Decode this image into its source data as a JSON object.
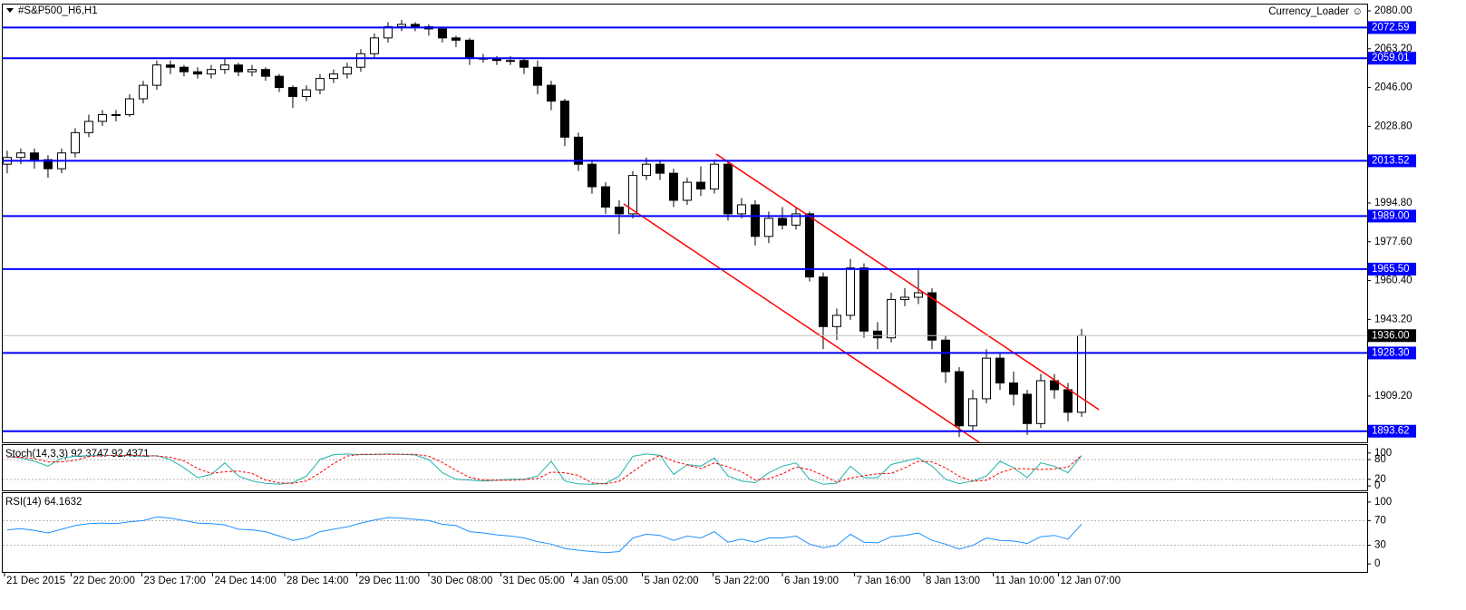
{
  "chart_data": [
    {
      "type": "candlestick",
      "title": "#S&P500_H6,H1",
      "annotation": "Currency_Loader ☺",
      "bull_color": "#ffffff",
      "bear_color": "#000000",
      "xlim": [
        -0.33,
        100
      ],
      "xticks": [
        {
          "value": -0.2,
          "label": "21 Dec 2015"
        },
        {
          "value": 4.7,
          "label": "22 Dec 20:00"
        },
        {
          "value": 9.9,
          "label": "23 Dec 17:00"
        },
        {
          "value": 15.1,
          "label": "24 Dec 14:00"
        },
        {
          "value": 20.4,
          "label": "28 Dec 14:00"
        },
        {
          "value": 25.7,
          "label": "29 Dec 11:00"
        },
        {
          "value": 31,
          "label": "30 Dec 08:00"
        },
        {
          "value": 36.3,
          "label": "31 Dec 05:00"
        },
        {
          "value": 41.5,
          "label": "4 Jan 05:00"
        },
        {
          "value": 46.7,
          "label": "5 Jan 02:00"
        },
        {
          "value": 51.9,
          "label": "5 Jan 22:00"
        },
        {
          "value": 57,
          "label": "6 Jan 19:00"
        },
        {
          "value": 62.3,
          "label": "7 Jan 16:00"
        },
        {
          "value": 67.4,
          "label": "8 Jan 13:00"
        },
        {
          "value": 72.5,
          "label": "11 Jan 10:00"
        },
        {
          "value": 77.3,
          "label": "12 Jan 07:00"
        }
      ],
      "ylim": [
        1888.68,
        2082.81
      ],
      "yticks": [
        {
          "value": 2080,
          "label": "2080.00"
        },
        {
          "value": 2063.2,
          "label": "2063.20"
        },
        {
          "value": 2046,
          "label": "2046.00"
        },
        {
          "value": 2028.8,
          "label": "2028.80"
        },
        {
          "value": 1994.8,
          "label": "1994.80"
        },
        {
          "value": 1977.6,
          "label": "1977.60"
        },
        {
          "value": 1960.4,
          "label": "1960.40"
        },
        {
          "value": 1943.2,
          "label": "1943.20"
        },
        {
          "value": 1909.2,
          "label": "1909.20"
        }
      ],
      "levels_color": "#0000ff",
      "levels": [
        2072.59,
        2059.01,
        2013.52,
        {
          "value": 1989,
          "label": "1989.00"
        },
        {
          "value": 1965.5,
          "label": "1965.50"
        },
        {
          "value": 1928.3,
          "label": "1928.30"
        },
        1893.62
      ],
      "price_line": {
        "value": 1936,
        "label": "1936.00"
      },
      "price_line_color": "#c0c0c0",
      "channel_color": "#ff0000",
      "channel": [
        {
          "x": [
            52.13,
            80.27
          ],
          "y": [
            2016.5,
            1903.2
          ]
        },
        {
          "x": [
            45.33,
            71.47
          ],
          "y": [
            1994.4,
            1888.7
          ]
        }
      ],
      "values": [
        [
          2012,
          2018,
          2008,
          2015
        ],
        [
          2015,
          2019,
          2012,
          2017
        ],
        [
          2017,
          2019,
          2010,
          2014
        ],
        [
          2014,
          2016,
          2006,
          2010
        ],
        [
          2010,
          2019,
          2008,
          2017
        ],
        [
          2017,
          2028,
          2015,
          2026
        ],
        [
          2026,
          2034,
          2024,
          2031
        ],
        [
          2031,
          2036,
          2029,
          2034
        ],
        [
          2034,
          2036,
          2031,
          2034
        ],
        [
          2034,
          2043,
          2033,
          2041
        ],
        [
          2041,
          2049,
          2039,
          2047
        ],
        [
          2047,
          2058,
          2045,
          2056
        ],
        [
          2056,
          2058,
          2052,
          2055
        ],
        [
          2055,
          2056,
          2051,
          2053
        ],
        [
          2053,
          2055,
          2050,
          2052
        ],
        [
          2052,
          2056,
          2050,
          2054
        ],
        [
          2054,
          2059,
          2052,
          2056
        ],
        [
          2056,
          2057,
          2051,
          2053
        ],
        [
          2053,
          2056,
          2051,
          2054
        ],
        [
          2054,
          2055,
          2049,
          2051
        ],
        [
          2051,
          2052,
          2044,
          2046
        ],
        [
          2046,
          2047,
          2037,
          2042
        ],
        [
          2042,
          2047,
          2040,
          2045
        ],
        [
          2045,
          2052,
          2043,
          2050
        ],
        [
          2050,
          2054,
          2048,
          2052
        ],
        [
          2052,
          2057,
          2050,
          2055
        ],
        [
          2055,
          2063,
          2053,
          2061
        ],
        [
          2061,
          2070,
          2059,
          2068
        ],
        [
          2068,
          2075,
          2066,
          2073
        ],
        [
          2073,
          2076,
          2071,
          2074
        ],
        [
          2074,
          2075,
          2071,
          2073
        ],
        [
          2073,
          2074,
          2069,
          2072
        ],
        [
          2072,
          2073,
          2066,
          2068
        ],
        [
          2068,
          2069,
          2064,
          2067
        ],
        [
          2067,
          2068,
          2056,
          2059
        ],
        [
          2059,
          2061,
          2057,
          2059
        ],
        [
          2059,
          2060,
          2056,
          2058
        ],
        [
          2058,
          2060,
          2056,
          2058
        ],
        [
          2058,
          2059,
          2052,
          2055
        ],
        [
          2055,
          2058,
          2043,
          2047
        ],
        [
          2047,
          2049,
          2036,
          2040
        ],
        [
          2040,
          2041,
          2020,
          2024
        ],
        [
          2024,
          2026,
          2009,
          2012
        ],
        [
          2012,
          2014,
          1999,
          2002
        ],
        [
          2002,
          2004,
          1990,
          1993
        ],
        [
          1993,
          1996,
          1981,
          1990
        ],
        [
          1990,
          2009,
          1988,
          2007
        ],
        [
          2007,
          2015,
          2005,
          2012
        ],
        [
          2012,
          2014,
          2005,
          2008
        ],
        [
          2008,
          2010,
          1993,
          1996
        ],
        [
          1996,
          2006,
          1994,
          2004
        ],
        [
          2004,
          2011,
          1998,
          2001
        ],
        [
          2001,
          2014,
          1999,
          2012
        ],
        [
          2012,
          2013,
          1987,
          1990
        ],
        [
          1990,
          1997,
          1988,
          1994
        ],
        [
          1994,
          1996,
          1976,
          1980
        ],
        [
          1980,
          1991,
          1977,
          1988
        ],
        [
          1988,
          1993,
          1983,
          1985
        ],
        [
          1985,
          1993,
          1983,
          1990
        ],
        [
          1990,
          1991,
          1960,
          1962
        ],
        [
          1962,
          1964,
          1930,
          1940
        ],
        [
          1940,
          1948,
          1934,
          1945
        ],
        [
          1945,
          1970,
          1943,
          1966
        ],
        [
          1966,
          1968,
          1935,
          1938
        ],
        [
          1938,
          1942,
          1930,
          1935
        ],
        [
          1935,
          1955,
          1933,
          1952
        ],
        [
          1952,
          1957,
          1949,
          1953
        ],
        [
          1953,
          1966,
          1950,
          1955
        ],
        [
          1955,
          1957,
          1930,
          1934
        ],
        [
          1934,
          1936,
          1915,
          1920
        ],
        [
          1920,
          1922,
          1891,
          1896
        ],
        [
          1896,
          1912,
          1894,
          1908
        ],
        [
          1908,
          1930,
          1906,
          1926
        ],
        [
          1926,
          1928,
          1912,
          1915
        ],
        [
          1915,
          1920,
          1905,
          1910
        ],
        [
          1910,
          1912,
          1892,
          1897
        ],
        [
          1897,
          1919,
          1895,
          1916
        ],
        [
          1916,
          1919,
          1908,
          1912
        ],
        [
          1912,
          1915,
          1898,
          1902
        ],
        [
          1902,
          1939,
          1900,
          1936
        ]
      ]
    },
    {
      "type": "line",
      "title": "Stoch(14,3,3) 92.3747 92.4371",
      "ylim": [
        -13.5,
        124.3
      ],
      "yticks": [
        100,
        80,
        20,
        0
      ],
      "levels": [
        80,
        20
      ],
      "series": [
        {
          "color": "#20b2aa",
          "dash": false,
          "values": [
            90,
            85,
            75,
            60,
            85,
            90,
            92,
            93,
            93,
            92,
            90,
            92,
            80,
            55,
            25,
            35,
            70,
            30,
            15,
            8,
            5,
            10,
            30,
            80,
            95,
            97,
            95,
            96,
            97,
            96,
            94,
            80,
            40,
            20,
            18,
            15,
            17,
            20,
            20,
            30,
            75,
            15,
            6,
            5,
            8,
            30,
            90,
            97,
            93,
            35,
            65,
            60,
            85,
            30,
            15,
            10,
            40,
            60,
            70,
            20,
            5,
            8,
            60,
            25,
            25,
            65,
            75,
            85,
            60,
            20,
            7,
            15,
            30,
            75,
            55,
            25,
            70,
            60,
            40,
            92.3747
          ]
        },
        {
          "color": "#ff0000",
          "dash": true,
          "values": [
            88,
            87,
            83,
            73,
            73,
            78,
            89,
            92,
            93,
            93,
            92,
            91,
            87,
            76,
            53,
            38,
            43,
            45,
            38,
            18,
            9,
            8,
            15,
            40,
            68,
            91,
            96,
            96,
            96,
            96,
            96,
            90,
            71,
            47,
            26,
            18,
            17,
            17,
            19,
            23,
            42,
            40,
            32,
            9,
            6,
            14,
            43,
            72,
            93,
            75,
            64,
            53,
            70,
            58,
            43,
            18,
            22,
            37,
            57,
            50,
            32,
            11,
            24,
            31,
            37,
            38,
            55,
            75,
            73,
            55,
            29,
            14,
            17,
            40,
            53,
            52,
            50,
            52,
            57,
            92.4371
          ]
        }
      ]
    },
    {
      "type": "line",
      "title": "RSI(14) 64.1632",
      "ylim": [
        -13,
        114.5
      ],
      "yticks": [
        100,
        70,
        30,
        0
      ],
      "levels": [
        70,
        30
      ],
      "series": [
        {
          "color": "#1e90ff",
          "dash": false,
          "values": [
            55,
            57,
            54,
            50,
            56,
            62,
            65,
            66,
            65,
            68,
            70,
            76,
            74,
            70,
            66,
            65,
            63,
            56,
            55,
            52,
            45,
            38,
            42,
            52,
            56,
            60,
            66,
            71,
            75,
            74,
            72,
            70,
            64,
            62,
            52,
            50,
            47,
            45,
            42,
            36,
            32,
            25,
            22,
            20,
            18,
            20,
            42,
            48,
            46,
            38,
            45,
            42,
            52,
            35,
            40,
            35,
            42,
            42,
            45,
            32,
            26,
            30,
            48,
            35,
            34,
            44,
            46,
            50,
            38,
            32,
            24,
            30,
            42,
            38,
            37,
            33,
            44,
            46,
            40,
            64.1632
          ]
        }
      ]
    }
  ]
}
